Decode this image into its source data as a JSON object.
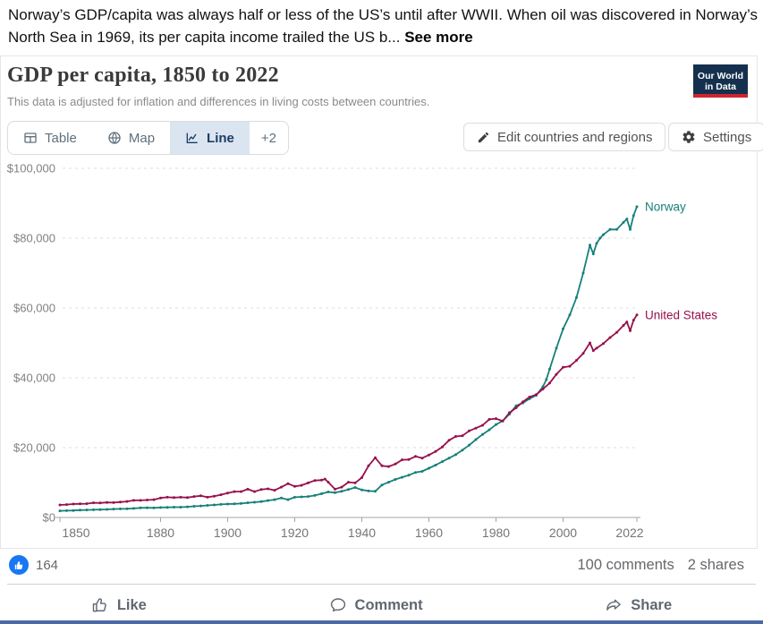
{
  "post": {
    "text": "Norway’s GDP/capita was always half or less of the US’s until after WWII.  When oil was discovered in Norway’s North Sea in 1969, its per capita income trailed the US b...",
    "see_more": "See more"
  },
  "chart_header": {
    "title": "GDP per capita, 1850 to 2022",
    "subtitle": "This data is adjusted for inflation and differences in living costs between countries.",
    "logo": {
      "line1": "Our World",
      "line2": "in Data",
      "bg_color": "#15304e",
      "accent_color": "#cf2430"
    }
  },
  "controls": {
    "tabs": [
      {
        "label": "Table",
        "icon": "table-icon",
        "selected": false
      },
      {
        "label": "Map",
        "icon": "globe-icon",
        "selected": false
      },
      {
        "label": "Line",
        "icon": "line-chart-icon",
        "selected": true
      },
      {
        "label": "+2",
        "icon": null,
        "selected": false
      }
    ],
    "buttons": [
      {
        "label": "Edit countries and regions",
        "icon": "pencil-icon"
      },
      {
        "label": "Settings",
        "icon": "gear-icon"
      }
    ]
  },
  "chart_data": {
    "type": "line",
    "title": "GDP per capita, 1850 to 2022",
    "xlabel": "",
    "ylabel": "",
    "xlim": [
      1850,
      2022
    ],
    "ylim": [
      0,
      100000
    ],
    "grid": "horizontal-dashed",
    "legend_position": "end-of-line-labels",
    "x_ticks": [
      {
        "year": 1850,
        "label": "1850"
      },
      {
        "year": 1880,
        "label": "1880"
      },
      {
        "year": 1900,
        "label": "1900"
      },
      {
        "year": 1920,
        "label": "1920"
      },
      {
        "year": 1940,
        "label": "1940"
      },
      {
        "year": 1960,
        "label": "1960"
      },
      {
        "year": 1980,
        "label": "1980"
      },
      {
        "year": 2000,
        "label": "2000"
      },
      {
        "year": 2022,
        "label": "2022"
      }
    ],
    "y_ticks": [
      {
        "v": 0,
        "label": "$0"
      },
      {
        "v": 20000,
        "label": "$20,000"
      },
      {
        "v": 40000,
        "label": "$40,000"
      },
      {
        "v": 60000,
        "label": "$60,000"
      },
      {
        "v": 80000,
        "label": "$80,000"
      },
      {
        "v": 100000,
        "label": "$100,000"
      }
    ],
    "series": [
      {
        "name": "Norway",
        "color": "#17807a",
        "points": [
          [
            1850,
            1900
          ],
          [
            1852,
            1950
          ],
          [
            1854,
            2000
          ],
          [
            1856,
            2100
          ],
          [
            1858,
            2150
          ],
          [
            1860,
            2200
          ],
          [
            1862,
            2250
          ],
          [
            1864,
            2300
          ],
          [
            1866,
            2400
          ],
          [
            1868,
            2450
          ],
          [
            1870,
            2500
          ],
          [
            1872,
            2600
          ],
          [
            1874,
            2750
          ],
          [
            1876,
            2800
          ],
          [
            1878,
            2750
          ],
          [
            1880,
            2850
          ],
          [
            1882,
            2900
          ],
          [
            1884,
            2950
          ],
          [
            1886,
            2950
          ],
          [
            1888,
            3050
          ],
          [
            1890,
            3200
          ],
          [
            1892,
            3300
          ],
          [
            1894,
            3450
          ],
          [
            1896,
            3600
          ],
          [
            1898,
            3750
          ],
          [
            1900,
            3850
          ],
          [
            1902,
            3900
          ],
          [
            1904,
            4000
          ],
          [
            1906,
            4200
          ],
          [
            1908,
            4350
          ],
          [
            1910,
            4550
          ],
          [
            1912,
            4850
          ],
          [
            1914,
            5100
          ],
          [
            1916,
            5600
          ],
          [
            1918,
            5100
          ],
          [
            1920,
            5800
          ],
          [
            1922,
            5900
          ],
          [
            1924,
            6000
          ],
          [
            1926,
            6300
          ],
          [
            1928,
            6800
          ],
          [
            1930,
            7300
          ],
          [
            1932,
            7100
          ],
          [
            1934,
            7500
          ],
          [
            1936,
            8000
          ],
          [
            1938,
            8600
          ],
          [
            1940,
            7900
          ],
          [
            1942,
            7600
          ],
          [
            1944,
            7500
          ],
          [
            1946,
            9300
          ],
          [
            1948,
            10100
          ],
          [
            1950,
            10900
          ],
          [
            1952,
            11500
          ],
          [
            1954,
            12100
          ],
          [
            1956,
            12900
          ],
          [
            1958,
            13200
          ],
          [
            1960,
            14100
          ],
          [
            1962,
            15000
          ],
          [
            1964,
            16000
          ],
          [
            1966,
            17000
          ],
          [
            1968,
            18000
          ],
          [
            1970,
            19300
          ],
          [
            1972,
            20700
          ],
          [
            1974,
            22300
          ],
          [
            1976,
            23800
          ],
          [
            1978,
            25100
          ],
          [
            1980,
            26600
          ],
          [
            1982,
            27700
          ],
          [
            1984,
            29600
          ],
          [
            1986,
            32000
          ],
          [
            1988,
            32800
          ],
          [
            1990,
            34000
          ],
          [
            1992,
            35000
          ],
          [
            1994,
            37500
          ],
          [
            1995,
            39500
          ],
          [
            1996,
            42500
          ],
          [
            1998,
            48500
          ],
          [
            2000,
            54000
          ],
          [
            2002,
            58000
          ],
          [
            2004,
            63000
          ],
          [
            2006,
            70000
          ],
          [
            2008,
            78000
          ],
          [
            2009,
            75500
          ],
          [
            2010,
            78500
          ],
          [
            2011,
            80000
          ],
          [
            2012,
            81000
          ],
          [
            2014,
            82500
          ],
          [
            2016,
            82500
          ],
          [
            2018,
            84500
          ],
          [
            2019,
            85500
          ],
          [
            2020,
            82500
          ],
          [
            2021,
            86500
          ],
          [
            2022,
            89000
          ]
        ]
      },
      {
        "name": "United States",
        "color": "#97114d",
        "points": [
          [
            1850,
            3600
          ],
          [
            1852,
            3700
          ],
          [
            1854,
            3850
          ],
          [
            1856,
            3900
          ],
          [
            1858,
            3950
          ],
          [
            1860,
            4200
          ],
          [
            1862,
            4150
          ],
          [
            1864,
            4300
          ],
          [
            1866,
            4250
          ],
          [
            1868,
            4400
          ],
          [
            1870,
            4600
          ],
          [
            1872,
            4900
          ],
          [
            1874,
            4900
          ],
          [
            1876,
            5000
          ],
          [
            1878,
            5100
          ],
          [
            1880,
            5600
          ],
          [
            1882,
            5800
          ],
          [
            1884,
            5700
          ],
          [
            1886,
            5800
          ],
          [
            1888,
            5700
          ],
          [
            1890,
            6000
          ],
          [
            1892,
            6200
          ],
          [
            1894,
            5800
          ],
          [
            1896,
            6100
          ],
          [
            1898,
            6500
          ],
          [
            1900,
            7000
          ],
          [
            1902,
            7400
          ],
          [
            1904,
            7400
          ],
          [
            1906,
            8100
          ],
          [
            1908,
            7400
          ],
          [
            1910,
            8000
          ],
          [
            1912,
            8200
          ],
          [
            1914,
            7800
          ],
          [
            1916,
            8700
          ],
          [
            1918,
            9700
          ],
          [
            1920,
            8900
          ],
          [
            1922,
            9200
          ],
          [
            1924,
            9900
          ],
          [
            1926,
            10600
          ],
          [
            1928,
            10700
          ],
          [
            1929,
            11000
          ],
          [
            1930,
            10100
          ],
          [
            1932,
            8100
          ],
          [
            1934,
            8700
          ],
          [
            1936,
            10100
          ],
          [
            1938,
            9900
          ],
          [
            1940,
            11400
          ],
          [
            1942,
            14800
          ],
          [
            1944,
            17100
          ],
          [
            1946,
            14800
          ],
          [
            1948,
            14600
          ],
          [
            1950,
            15300
          ],
          [
            1952,
            16500
          ],
          [
            1954,
            16600
          ],
          [
            1956,
            17500
          ],
          [
            1958,
            17000
          ],
          [
            1960,
            17900
          ],
          [
            1962,
            18900
          ],
          [
            1964,
            20200
          ],
          [
            1966,
            22100
          ],
          [
            1968,
            23200
          ],
          [
            1970,
            23400
          ],
          [
            1972,
            24800
          ],
          [
            1974,
            25600
          ],
          [
            1976,
            26400
          ],
          [
            1978,
            28100
          ],
          [
            1980,
            28300
          ],
          [
            1982,
            27600
          ],
          [
            1984,
            30000
          ],
          [
            1986,
            31400
          ],
          [
            1988,
            33100
          ],
          [
            1990,
            34500
          ],
          [
            1992,
            35200
          ],
          [
            1994,
            36800
          ],
          [
            1996,
            38500
          ],
          [
            1998,
            41000
          ],
          [
            2000,
            43000
          ],
          [
            2002,
            43300
          ],
          [
            2004,
            45000
          ],
          [
            2006,
            47000
          ],
          [
            2008,
            50000
          ],
          [
            2009,
            47800
          ],
          [
            2010,
            48500
          ],
          [
            2012,
            49800
          ],
          [
            2014,
            51500
          ],
          [
            2016,
            53000
          ],
          [
            2018,
            55000
          ],
          [
            2019,
            56000
          ],
          [
            2020,
            53500
          ],
          [
            2021,
            56500
          ],
          [
            2022,
            58000
          ]
        ]
      }
    ]
  },
  "engagement": {
    "reactions_count": "164",
    "comments": "100 comments",
    "shares": "2 shares",
    "like_color": "#1877f2"
  },
  "actions": [
    {
      "label": "Like",
      "icon": "thumbs-up-icon"
    },
    {
      "label": "Comment",
      "icon": "comment-icon"
    },
    {
      "label": "Share",
      "icon": "share-icon"
    }
  ]
}
